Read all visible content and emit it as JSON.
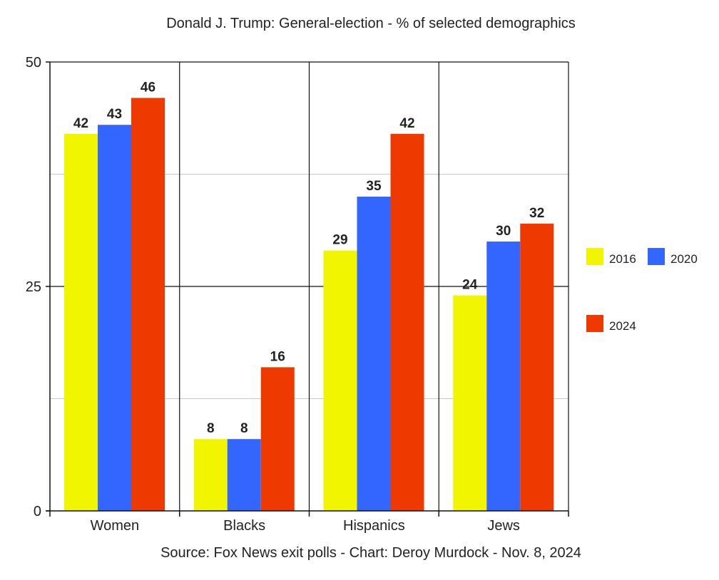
{
  "chart_data": {
    "type": "bar",
    "title": "Donald J. Trump: General-election - % of selected demographics",
    "source": "Source: Fox News exit polls - Chart: Deroy Murdock - Nov. 8, 2024",
    "categories": [
      "Women",
      "Blacks",
      "Hispanics",
      "Jews"
    ],
    "series": [
      {
        "name": "2016",
        "color": "#f2f500",
        "values": [
          42,
          8,
          29,
          24
        ]
      },
      {
        "name": "2020",
        "color": "#3366ff",
        "values": [
          43,
          8,
          35,
          30
        ]
      },
      {
        "name": "2024",
        "color": "#ee3a00",
        "values": [
          46,
          16,
          42,
          32
        ]
      }
    ],
    "ylim": [
      0,
      50
    ],
    "yticks": [
      0,
      25,
      50
    ],
    "xlabel": "",
    "ylabel": "",
    "grid": true,
    "legend_position": "right"
  }
}
